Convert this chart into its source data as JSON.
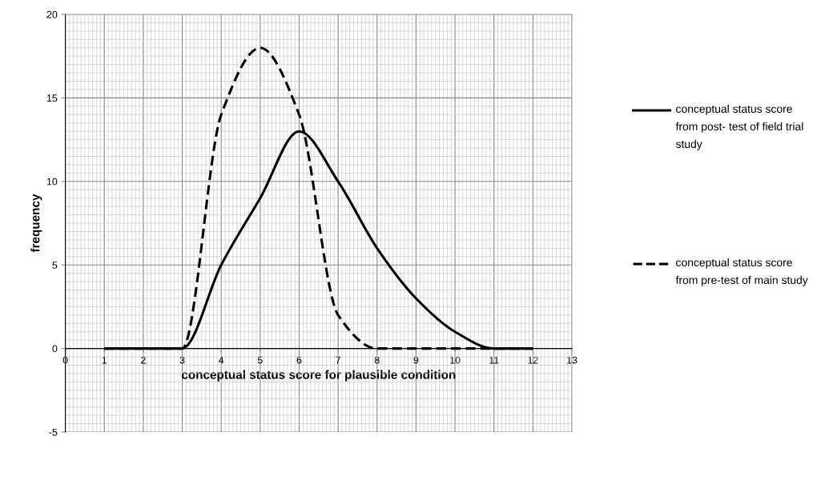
{
  "chart_data": {
    "type": "line",
    "xlabel": "conceptual status score for plausible condition",
    "ylabel": "frequency",
    "x": [
      1,
      2,
      3,
      4,
      5,
      6,
      7,
      8,
      9,
      10,
      11,
      12
    ],
    "series": [
      {
        "name": "conceptual status score from post- test of field trial study",
        "color": "#000000",
        "line_style": "solid",
        "values": [
          0,
          0,
          0,
          5,
          9,
          13,
          10,
          6,
          3,
          1,
          0,
          0
        ]
      },
      {
        "name": "conceptual status score from pre-test of main study",
        "color": "#000000",
        "line_style": "dashed",
        "values": [
          0,
          0,
          0,
          14,
          18,
          14,
          2,
          0,
          0,
          0,
          0,
          0
        ]
      }
    ],
    "xlim": [
      0,
      13
    ],
    "xticks": [
      0,
      1,
      2,
      3,
      4,
      5,
      6,
      7,
      8,
      9,
      10,
      11,
      12,
      13
    ],
    "ylim": [
      -5,
      20
    ],
    "yticks": [
      -5,
      0,
      5,
      10,
      15,
      20
    ],
    "grid": true,
    "legend": "right",
    "marker": "none"
  }
}
